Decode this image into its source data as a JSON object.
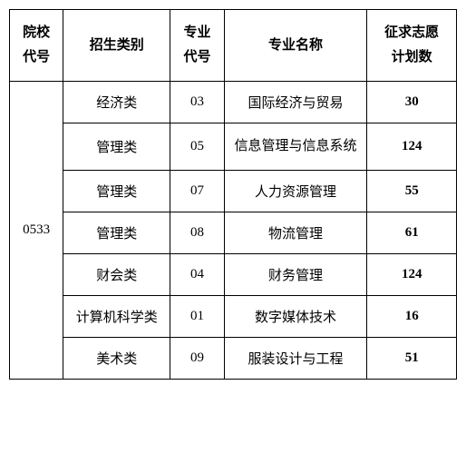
{
  "table": {
    "headers": {
      "school_code": "院校\n代号",
      "category": "招生类别",
      "major_code": "专业\n代号",
      "major_name": "专业名称",
      "plan_count": "征求志愿\n计划数"
    },
    "school_code": "0533",
    "rows": [
      {
        "category": "经济类",
        "major_code": "03",
        "major_name": "国际经济与贸易",
        "plan_count": "30"
      },
      {
        "category": "管理类",
        "major_code": "05",
        "major_name": "信息管理与信息系统",
        "plan_count": "124"
      },
      {
        "category": "管理类",
        "major_code": "07",
        "major_name": "人力资源管理",
        "plan_count": "55"
      },
      {
        "category": "管理类",
        "major_code": "08",
        "major_name": "物流管理",
        "plan_count": "61"
      },
      {
        "category": "财会类",
        "major_code": "04",
        "major_name": "财务管理",
        "plan_count": "124"
      },
      {
        "category": "计算机科学类",
        "major_code": "01",
        "major_name": "数字媒体技术",
        "plan_count": "16"
      },
      {
        "category": "美术类",
        "major_code": "09",
        "major_name": "服装设计与工程",
        "plan_count": "51"
      }
    ],
    "styling": {
      "border_color": "#000000",
      "background_color": "#ffffff",
      "font_family": "SimSun",
      "header_fontsize": 15,
      "cell_fontsize": 15,
      "text_color": "#000000"
    }
  }
}
